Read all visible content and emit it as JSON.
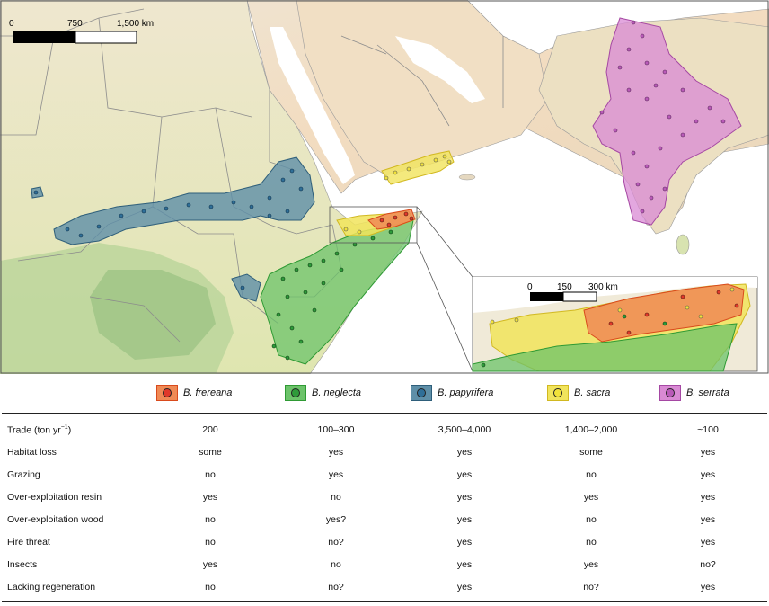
{
  "scale_bar": {
    "labels": [
      "0",
      "750",
      "1,500 km"
    ]
  },
  "inset_scale_bar": {
    "labels": [
      "0",
      "150",
      "300 km"
    ]
  },
  "legend": [
    {
      "name": "B. frereana",
      "fill": "#f08a55",
      "stroke": "#d94a1c",
      "dot": "#e0392a"
    },
    {
      "name": "B. neglecta",
      "fill": "#6cc36a",
      "stroke": "#2f9a34",
      "dot": "#2e9a3a"
    },
    {
      "name": "B. papyrifera",
      "fill": "#5e8fa8",
      "stroke": "#2e5e7a",
      "dot": "#2f6f98"
    },
    {
      "name": "B. sacra",
      "fill": "#f1e45c",
      "stroke": "#d1b820",
      "dot": "#f2e23a"
    },
    {
      "name": "B. serrata",
      "fill": "#d98ad4",
      "stroke": "#a548a3",
      "dot": "#b95ab8"
    }
  ],
  "table": {
    "rows": [
      {
        "label": "Trade (ton yr",
        "label_sup": "−1",
        "label_end": ")",
        "values": [
          "200",
          "100–300",
          "3,500–4,000",
          "1,400–2,000",
          "~100"
        ]
      },
      {
        "label": "Habitat loss",
        "values": [
          "some",
          "yes",
          "yes",
          "some",
          "yes"
        ]
      },
      {
        "label": "Grazing",
        "values": [
          "no",
          "yes",
          "yes",
          "no",
          "yes"
        ]
      },
      {
        "label": "Over-exploitation resin",
        "values": [
          "yes",
          "no",
          "yes",
          "yes",
          "yes"
        ]
      },
      {
        "label": "Over-exploitation wood",
        "values": [
          "no",
          "yes?",
          "yes",
          "no",
          "yes"
        ]
      },
      {
        "label": "Fire threat",
        "values": [
          "no",
          "no?",
          "yes",
          "no",
          "yes"
        ]
      },
      {
        "label": "Insects",
        "values": [
          "yes",
          "no",
          "yes",
          "yes",
          "no?"
        ]
      },
      {
        "label": "Lacking regeneration",
        "values": [
          "no",
          "no?",
          "yes",
          "no?",
          "yes"
        ]
      }
    ]
  }
}
